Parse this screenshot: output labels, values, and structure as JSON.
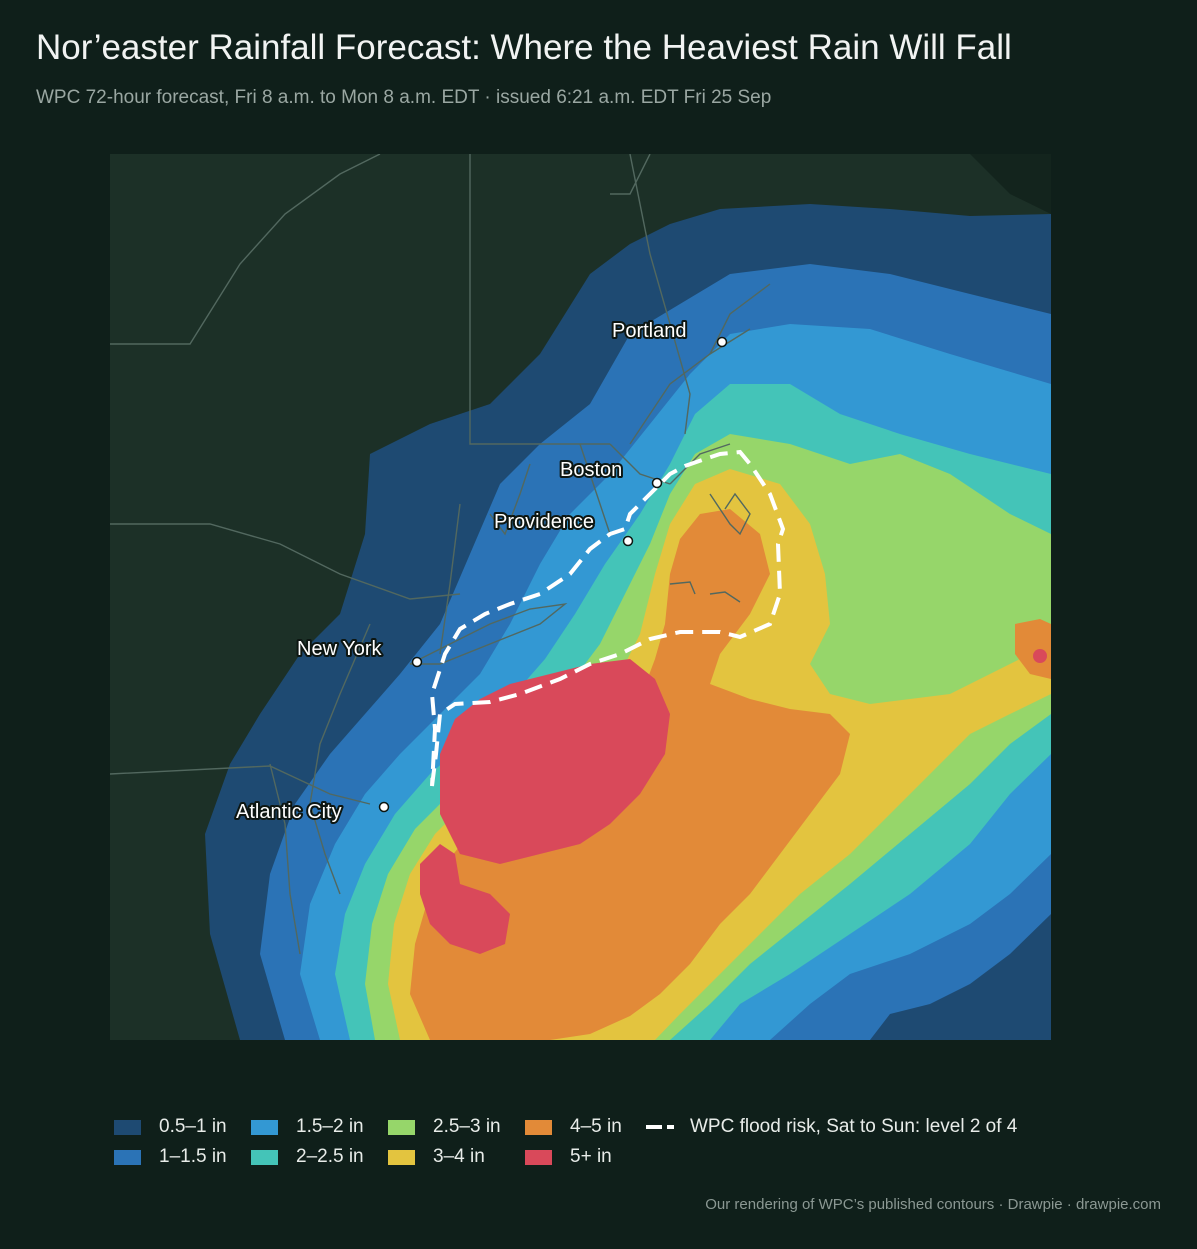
{
  "header": {
    "title": "Nor’easter Rainfall Forecast: Where the Heaviest Rain Will Fall",
    "subtitle": "WPC 72-hour forecast, Fri 8 a.m. to Mon 8 a.m. EDT  ·  issued 6:21 a.m. EDT Fri 25 Sep"
  },
  "colors": {
    "background": "#0f1f1a",
    "land": "#1c3027",
    "border": "#52685f",
    "band_0_5_1": "#1e4a72",
    "band_1_1_5": "#2b73b6",
    "band_1_5_2": "#3398d3",
    "band_2_2_5": "#44c4b8",
    "band_2_5_3": "#96d66a",
    "band_3_4": "#e3c43f",
    "band_4_5": "#e28a38",
    "band_5_plus": "#d9495a",
    "flood_line": "#ffffff"
  },
  "cities": [
    {
      "name": "Portland"
    },
    {
      "name": "Boston"
    },
    {
      "name": "Providence"
    },
    {
      "name": "New York"
    },
    {
      "name": "Atlantic City"
    }
  ],
  "legend": {
    "bands": [
      {
        "label": "0.5–1 in",
        "color": "#1e4a72"
      },
      {
        "label": "1–1.5 in",
        "color": "#2b73b6"
      },
      {
        "label": "1.5–2 in",
        "color": "#3398d3"
      },
      {
        "label": "2–2.5 in",
        "color": "#44c4b8"
      },
      {
        "label": "2.5–3 in",
        "color": "#96d66a"
      },
      {
        "label": "3–4 in",
        "color": "#e3c43f"
      },
      {
        "label": "4–5 in",
        "color": "#e28a38"
      },
      {
        "label": "5+ in",
        "color": "#d9495a"
      }
    ],
    "flood_label": "WPC flood risk, Sat to Sun: level 2 of 4"
  },
  "footer": {
    "credit": "Our rendering of WPC’s published contours  ·  Drawpie · drawpie.com"
  }
}
